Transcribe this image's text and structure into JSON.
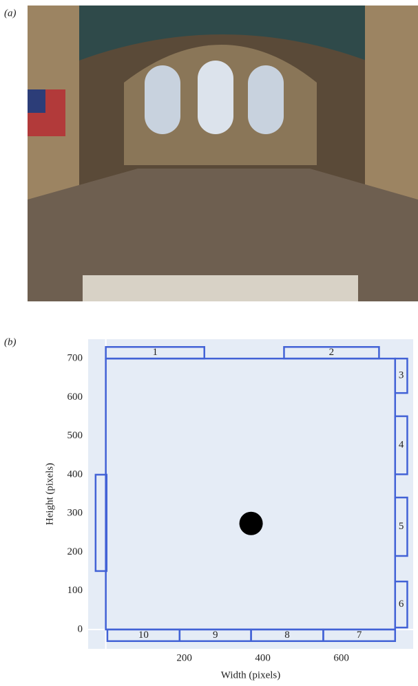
{
  "panel_labels": [
    "(a)",
    "(b)"
  ],
  "chart_data": {
    "type": "rect",
    "x_label": "Width (pixels)",
    "y_label": "Height (pixels)",
    "xlim": [
      -45,
      783
    ],
    "ylim": [
      -50,
      750
    ],
    "xticks": [
      200,
      400,
      600
    ],
    "yticks": [
      0,
      100,
      200,
      300,
      400,
      500,
      600,
      700
    ],
    "grid": false,
    "zeroline": true,
    "color": "#4262d6",
    "rects": [
      {
        "label": null,
        "x0": 0,
        "x1": 737,
        "y0": 0,
        "y1": 700
      },
      {
        "label": "1",
        "x0": 0,
        "x1": 251,
        "y0": 700,
        "y1": 730
      },
      {
        "label": "2",
        "x0": 454,
        "x1": 696,
        "y0": 700,
        "y1": 730
      },
      {
        "label": "3",
        "x0": 737,
        "x1": 768,
        "y0": 611,
        "y1": 700
      },
      {
        "label": "4",
        "x0": 737,
        "x1": 768,
        "y0": 401,
        "y1": 551
      },
      {
        "label": "5",
        "x0": 737,
        "x1": 768,
        "y0": 190,
        "y1": 341
      },
      {
        "label": "6",
        "x0": 737,
        "x1": 768,
        "y0": 5,
        "y1": 124
      },
      {
        "label": "7",
        "x0": 554,
        "x1": 737,
        "y0": -30,
        "y1": 0
      },
      {
        "label": "8",
        "x0": 370,
        "x1": 554,
        "y0": -30,
        "y1": 0
      },
      {
        "label": "9",
        "x0": 188,
        "x1": 370,
        "y0": -30,
        "y1": 0
      },
      {
        "label": "10",
        "x0": 4,
        "x1": 188,
        "y0": -30,
        "y1": 0
      },
      {
        "label": null,
        "x0": -26,
        "x1": 2,
        "y0": 151,
        "y1": 400
      }
    ],
    "point": {
      "x": 370,
      "y": 274,
      "color": "#000000"
    }
  }
}
